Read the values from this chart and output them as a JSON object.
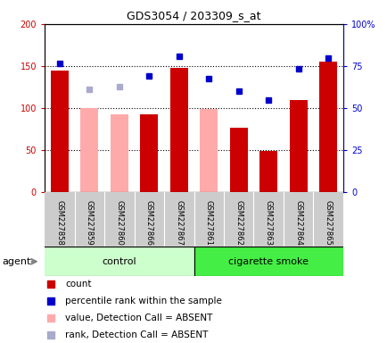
{
  "title": "GDS3054 / 203309_s_at",
  "samples": [
    "GSM227858",
    "GSM227859",
    "GSM227860",
    "GSM227866",
    "GSM227867",
    "GSM227861",
    "GSM227862",
    "GSM227863",
    "GSM227864",
    "GSM227865"
  ],
  "groups": [
    "control",
    "control",
    "control",
    "control",
    "control",
    "cigarette smoke",
    "cigarette smoke",
    "cigarette smoke",
    "cigarette smoke",
    "cigarette smoke"
  ],
  "count_values": [
    145,
    null,
    null,
    93,
    148,
    null,
    77,
    49,
    110,
    155
  ],
  "count_absent_values": [
    null,
    100,
    92,
    null,
    null,
    99,
    null,
    null,
    null,
    null
  ],
  "rank_values": [
    153,
    null,
    null,
    138,
    162,
    135,
    120,
    110,
    147,
    160
  ],
  "rank_absent_values": [
    null,
    122,
    125,
    null,
    null,
    null,
    null,
    null,
    null,
    null
  ],
  "ylim_left": [
    0,
    200
  ],
  "ylim_right": [
    0,
    100
  ],
  "yticks_left": [
    0,
    50,
    100,
    150,
    200
  ],
  "ytick_labels_left": [
    "0",
    "50",
    "100",
    "150",
    "200"
  ],
  "yticks_right": [
    0,
    25,
    50,
    75,
    100
  ],
  "ytick_labels_right": [
    "0",
    "25",
    "50",
    "75",
    "100%"
  ],
  "color_count": "#cc0000",
  "color_rank": "#0000cc",
  "color_count_absent": "#ffaaaa",
  "color_rank_absent": "#aaaacc",
  "control_color": "#ccffcc",
  "smoke_color": "#44ee44",
  "control_label": "control",
  "smoke_label": "cigarette smoke",
  "agent_label": "agent",
  "xlabels_bg": "#cccccc",
  "legend_items": [
    {
      "label": "count",
      "color": "#cc0000"
    },
    {
      "label": "percentile rank within the sample",
      "color": "#0000cc"
    },
    {
      "label": "value, Detection Call = ABSENT",
      "color": "#ffaaaa"
    },
    {
      "label": "rank, Detection Call = ABSENT",
      "color": "#aaaacc"
    }
  ]
}
